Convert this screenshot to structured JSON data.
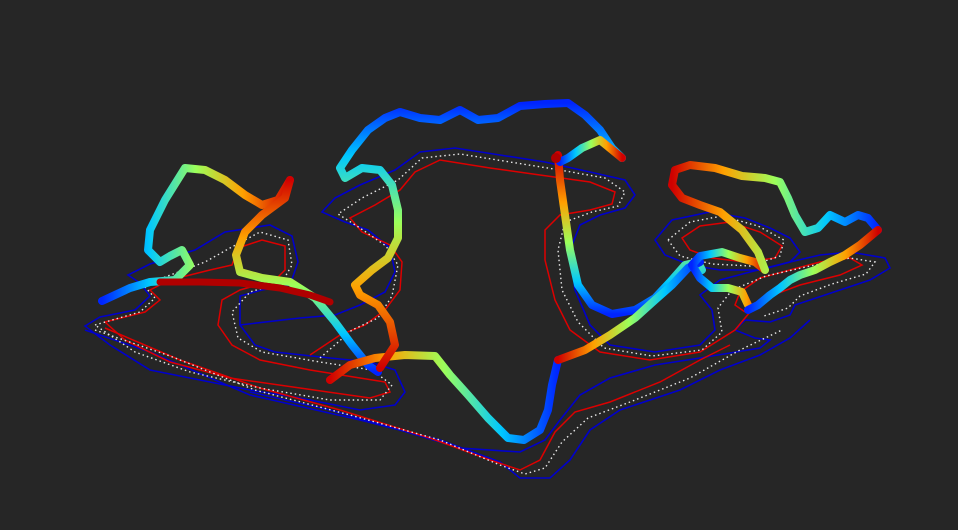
{
  "scene": {
    "background_color": "#262626",
    "track_outer_color": "#0000cc",
    "track_inner_color": "#dd0000",
    "centerline_color": "#e8e8e8",
    "colormap": "jet"
  }
}
